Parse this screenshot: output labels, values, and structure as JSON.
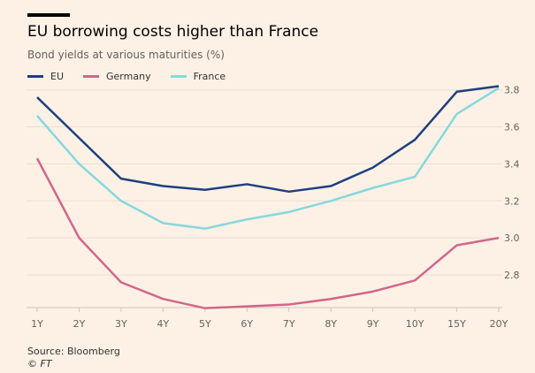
{
  "chart_data": {
    "type": "line",
    "title": "EU borrowing costs higher than France",
    "subtitle": "Bond yields at various maturities (%)",
    "categories": [
      "1Y",
      "2Y",
      "3Y",
      "4Y",
      "5Y",
      "6Y",
      "7Y",
      "8Y",
      "9Y",
      "10Y",
      "15Y",
      "20Y"
    ],
    "series": [
      {
        "name": "EU",
        "color": "#1f3f7f",
        "values": [
          3.76,
          3.54,
          3.32,
          3.28,
          3.26,
          3.29,
          3.25,
          3.28,
          3.38,
          3.53,
          3.79,
          3.82
        ]
      },
      {
        "name": "Germany",
        "color": "#d2668a",
        "values": [
          3.43,
          3.0,
          2.76,
          2.67,
          2.62,
          2.63,
          2.64,
          2.67,
          2.71,
          2.77,
          2.96,
          3.0
        ]
      },
      {
        "name": "France",
        "color": "#86d8dc",
        "values": [
          3.66,
          3.4,
          3.2,
          3.08,
          3.05,
          3.1,
          3.14,
          3.2,
          3.27,
          3.33,
          3.67,
          3.81
        ]
      }
    ],
    "yticks": [
      "2.8",
      "3.0",
      "3.2",
      "3.4",
      "3.6",
      "3.8"
    ],
    "ylim": [
      2.62,
      3.82
    ],
    "axis_position": "right",
    "grid": true,
    "legend_position": "top-left"
  },
  "source": "Source: Bloomberg",
  "credit": "© FT"
}
